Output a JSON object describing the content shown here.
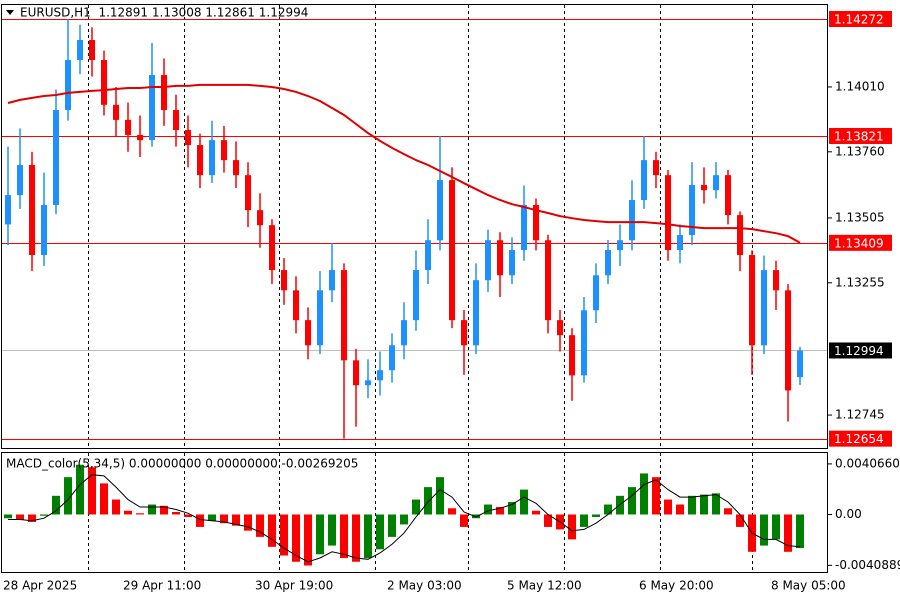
{
  "chart_data": [
    {
      "type": "candlestick",
      "title": "EURUSD,H1  1.12891 1.13008 1.12861 1.12994",
      "categories": [
        "28 Apr 2025",
        null,
        null,
        null,
        null,
        null,
        null,
        null,
        null,
        null,
        "29 Apr 11:00",
        null,
        null,
        null,
        null,
        null,
        null,
        null,
        null,
        null,
        null,
        "30 Apr 19:00",
        null,
        null,
        null,
        null,
        null,
        null,
        null,
        null,
        null,
        null,
        "2 May 03:00",
        null,
        null,
        null,
        null,
        null,
        null,
        null,
        null,
        null,
        "5 May 12:00",
        null,
        null,
        null,
        null,
        null,
        null,
        null,
        null,
        null,
        null,
        "6 May 20:00",
        null,
        null,
        null,
        null,
        null,
        null,
        null,
        null,
        null,
        null,
        "8 May 05:00",
        null,
        null
      ],
      "open": [
        1.1348,
        1.13593,
        1.13709,
        1.13362,
        1.13555,
        1.13921,
        1.14114,
        1.14191,
        1.14114,
        1.13941,
        1.13883,
        1.13825,
        1.13805,
        1.14056,
        1.13921,
        1.13844,
        1.13786,
        1.1367,
        1.13805,
        1.13728,
        1.1367,
        1.13535,
        1.13477,
        1.13304,
        1.13226,
        1.13111,
        1.13014,
        1.13226,
        1.13304,
        1.12956,
        1.1286,
        1.12879,
        1.12918,
        1.13014,
        1.13111,
        1.13304,
        1.13419,
        1.13651,
        1.13111,
        1.13014,
        1.13265,
        1.13419,
        1.13284,
        1.13381,
        1.13555,
        1.13419,
        1.13111,
        1.13053,
        1.12898,
        1.13149,
        1.13284,
        1.13381,
        1.13419,
        1.13574,
        1.13728,
        1.1367,
        1.13381,
        1.13439,
        1.13632,
        1.13612,
        1.1367,
        1.13516,
        1.13362,
        1.13014,
        1.13304,
        1.13226,
        1.12891
      ],
      "high": [
        1.1378,
        1.1385,
        1.1376,
        1.1368,
        1.14,
        1.14272,
        1.1425,
        1.1424,
        1.1415,
        1.1401,
        1.1395,
        1.139,
        1.1418,
        1.1412,
        1.1398,
        1.139,
        1.1383,
        1.1388,
        1.1386,
        1.138,
        1.1372,
        1.136,
        1.135,
        1.1335,
        1.1328,
        1.1316,
        1.133,
        1.13409,
        1.1333,
        1.13,
        1.1296,
        1.1299,
        1.1306,
        1.1318,
        1.1338,
        1.135,
        1.13821,
        1.137,
        1.1315,
        1.1333,
        1.1346,
        1.1345,
        1.1343,
        1.1363,
        1.1358,
        1.1344,
        1.1315,
        1.1308,
        1.132,
        1.1333,
        1.1342,
        1.1348,
        1.1365,
        1.13821,
        1.1376,
        1.1369,
        1.1348,
        1.1372,
        1.137,
        1.1372,
        1.1369,
        1.1353,
        1.1338,
        1.1336,
        1.1334,
        1.1325,
        1.13008
      ],
      "low": [
        1.134,
        1.1354,
        1.133,
        1.1332,
        1.1352,
        1.1388,
        1.1406,
        1.1405,
        1.139,
        1.1382,
        1.1376,
        1.1374,
        1.1378,
        1.1386,
        1.1378,
        1.137,
        1.1362,
        1.1364,
        1.1368,
        1.1362,
        1.1347,
        1.1339,
        1.1325,
        1.1317,
        1.1306,
        1.1296,
        1.1298,
        1.1318,
        1.12654,
        1.127,
        1.1281,
        1.1282,
        1.1287,
        1.1296,
        1.1307,
        1.1325,
        1.1338,
        1.1308,
        1.129,
        1.1298,
        1.1322,
        1.132,
        1.1325,
        1.1334,
        1.1338,
        1.1306,
        1.1299,
        1.128,
        1.1287,
        1.131,
        1.1325,
        1.1332,
        1.1338,
        1.1354,
        1.1362,
        1.1334,
        1.1333,
        1.134,
        1.1356,
        1.1358,
        1.1348,
        1.133,
        1.129,
        1.1298,
        1.1315,
        1.1272,
        1.12861
      ],
      "close": [
        1.13593,
        1.13709,
        1.13362,
        1.13555,
        1.13921,
        1.14114,
        1.14191,
        1.14114,
        1.13941,
        1.13883,
        1.13825,
        1.13805,
        1.14056,
        1.13921,
        1.13844,
        1.13786,
        1.1367,
        1.13805,
        1.13728,
        1.1367,
        1.13535,
        1.13477,
        1.13304,
        1.13226,
        1.13111,
        1.13014,
        1.13226,
        1.13304,
        1.12956,
        1.1286,
        1.12879,
        1.12918,
        1.13014,
        1.13111,
        1.13304,
        1.13419,
        1.13651,
        1.13111,
        1.13014,
        1.13265,
        1.13419,
        1.13284,
        1.13381,
        1.13555,
        1.13419,
        1.13111,
        1.13053,
        1.12898,
        1.13149,
        1.13284,
        1.13381,
        1.13419,
        1.13574,
        1.13728,
        1.1367,
        1.13381,
        1.13439,
        1.13632,
        1.13612,
        1.1367,
        1.13516,
        1.13362,
        1.13014,
        1.13304,
        1.13226,
        1.1284,
        1.12994
      ],
      "ma_values": [
        1.13948,
        1.1396,
        1.13968,
        1.13975,
        1.13979,
        1.13987,
        1.13991,
        1.13995,
        1.13998,
        1.14002,
        1.14006,
        1.14006,
        1.1401,
        1.1401,
        1.14014,
        1.14014,
        1.14018,
        1.14018,
        1.14018,
        1.14018,
        1.14018,
        1.14014,
        1.1401,
        1.14002,
        1.13991,
        1.13975,
        1.13956,
        1.13929,
        1.13902,
        1.13867,
        1.13832,
        1.13802,
        1.13775,
        1.13751,
        1.13728,
        1.13709,
        1.13686,
        1.13663,
        1.13639,
        1.13616,
        1.13593,
        1.13574,
        1.13558,
        1.13547,
        1.13535,
        1.13524,
        1.13512,
        1.13504,
        1.13497,
        1.13493,
        1.13489,
        1.13489,
        1.13489,
        1.13489,
        1.13485,
        1.13481,
        1.13474,
        1.1347,
        1.13466,
        1.13466,
        1.13466,
        1.13466,
        1.13462,
        1.13454,
        1.13446,
        1.13435,
        1.13409
      ],
      "up_color": "#1e90ff",
      "down_color": "#ff0000",
      "ma_color": "#e00000",
      "ylim": [
        1.12618,
        1.14326
      ],
      "yticks": [
        {
          "value": 1.1401,
          "label": "1.14010"
        },
        {
          "value": 1.1376,
          "label": "1.13760"
        },
        {
          "value": 1.13505,
          "label": "1.13505"
        },
        {
          "value": 1.13255,
          "label": "1.13255"
        },
        {
          "value": 1.12745,
          "label": "1.12745"
        }
      ],
      "levels": [
        {
          "value": 1.14272,
          "color": "#ff0000"
        },
        {
          "value": 1.13821,
          "color": "#ff0000"
        },
        {
          "value": 1.13409,
          "color": "#ff0000"
        },
        {
          "value": 1.12994,
          "color": "#000000",
          "line_color": "#c0c0c0"
        },
        {
          "value": 1.12654,
          "color": "#ff0000"
        }
      ]
    },
    {
      "type": "macd",
      "title": "MACD_color(5,34,5) 0.00000000 0.00000000 -0.00269205",
      "values": [
        -0.0003,
        -0.0004,
        -0.0006,
        -0.0001,
        0.0015,
        0.003,
        0.004,
        0.0038,
        0.0025,
        0.0012,
        0.0003,
        0.0001,
        0.0008,
        0.0007,
        0.0002,
        -0.0002,
        -0.001,
        -0.0005,
        -0.0007,
        -0.0009,
        -0.0013,
        -0.0018,
        -0.0026,
        -0.0033,
        -0.0038,
        -0.0041,
        -0.0032,
        -0.0025,
        -0.0035,
        -0.0038,
        -0.0035,
        -0.0028,
        -0.0018,
        -0.0008,
        0.0012,
        0.0022,
        0.003,
        0.0005,
        -0.001,
        -0.0003,
        0.0008,
        0.0006,
        0.001,
        0.002,
        0.0003,
        -0.001,
        -0.0012,
        -0.002,
        -0.001,
        -0.0002,
        0.0008,
        0.0015,
        0.0022,
        0.0033,
        0.003,
        0.0012,
        0.0008,
        0.0015,
        0.0016,
        0.0017,
        0.0005,
        -0.001,
        -0.003,
        -0.0025,
        -0.002,
        -0.003,
        -0.0027
      ],
      "signal_values": [
        -0.0004,
        -0.0004,
        -0.0005,
        -0.0003,
        0.0003,
        0.0012,
        0.0024,
        0.0032,
        0.0031,
        0.0022,
        0.0012,
        0.0006,
        0.0006,
        0.0006,
        0.0004,
        0.0001,
        -0.0004,
        -0.0005,
        -0.0006,
        -0.0008,
        -0.001,
        -0.0014,
        -0.002,
        -0.0027,
        -0.0033,
        -0.0038,
        -0.0035,
        -0.003,
        -0.0032,
        -0.0035,
        -0.0036,
        -0.0031,
        -0.0024,
        -0.0015,
        -0.0002,
        0.001,
        0.002,
        0.0014,
        0.0002,
        -0.0002,
        0.0003,
        0.0005,
        0.0008,
        0.0014,
        0.0009,
        0.0,
        -0.0006,
        -0.0013,
        -0.0012,
        -0.0007,
        0.0,
        0.0008,
        0.0015,
        0.0024,
        0.0028,
        0.002,
        0.0014,
        0.0014,
        0.0015,
        0.0016,
        0.001,
        0.0,
        -0.0015,
        -0.002,
        -0.002,
        -0.0025,
        -0.0026
      ],
      "up_color": "#008000",
      "down_color": "#ff0000",
      "signal_color": "#000000",
      "ylim": [
        -0.004624,
        0.004943
      ],
      "yticks": [
        {
          "value": 0.004066,
          "label": "0.0040660"
        },
        {
          "value": 0,
          "label": "0.00"
        },
        {
          "value": -0.0040889,
          "label": "-0.0040889"
        }
      ]
    }
  ]
}
